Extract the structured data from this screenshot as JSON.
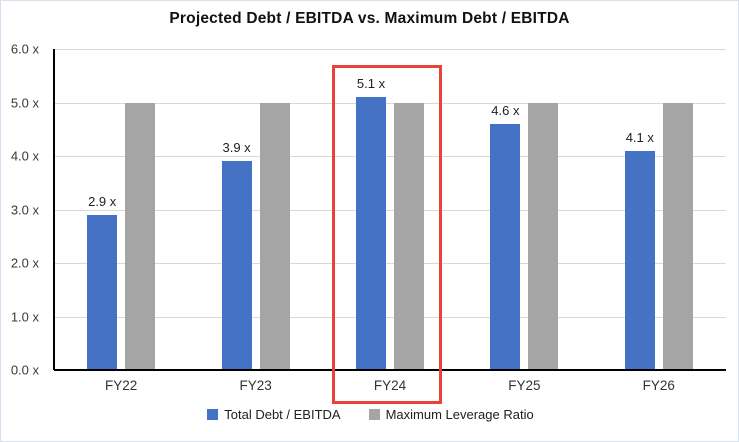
{
  "title": "Projected Debt / EBITDA vs. Maximum Debt / EBITDA",
  "chart_data": {
    "type": "bar",
    "categories": [
      "FY22",
      "FY23",
      "FY24",
      "FY25",
      "FY26"
    ],
    "series": [
      {
        "name": "Total Debt / EBITDA",
        "color": "#4472C4",
        "values": [
          2.9,
          3.9,
          5.1,
          4.6,
          4.1
        ],
        "data_labels": [
          "2.9 x",
          "3.9 x",
          "5.1 x",
          "4.6 x",
          "4.1 x"
        ]
      },
      {
        "name": "Maximum Leverage Ratio",
        "color": "#A5A5A5",
        "values": [
          5.0,
          5.0,
          5.0,
          5.0,
          5.0
        ],
        "data_labels": []
      }
    ],
    "ylim": [
      0,
      6
    ],
    "ytick_step": 1,
    "ytick_labels": [
      "0.0 x",
      "1.0 x",
      "2.0 x",
      "3.0 x",
      "4.0 x",
      "5.0 x",
      "6.0 x"
    ],
    "grid": true,
    "legend_position": "bottom",
    "highlight": {
      "category": "FY24",
      "category_index": 2,
      "box_color": "#e8423b"
    }
  },
  "legend": {
    "items": [
      {
        "label": "Total Debt / EBITDA",
        "color": "#4472C4"
      },
      {
        "label": "Maximum Leverage Ratio",
        "color": "#A5A5A5"
      }
    ]
  }
}
